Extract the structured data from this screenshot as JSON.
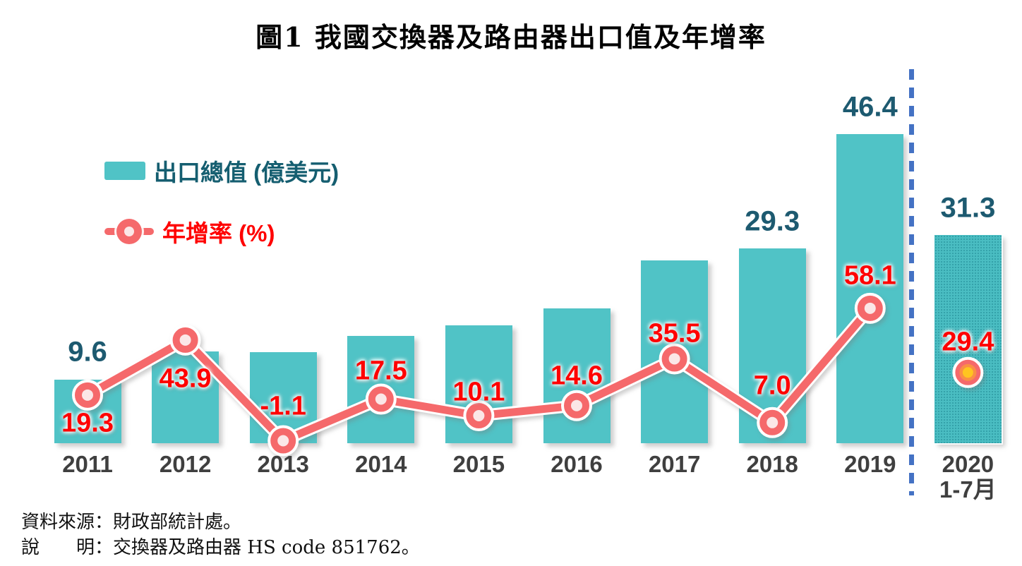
{
  "title": "圖1 我國交換器及路由器出口值及年增率",
  "legend": {
    "bars_label": "出口總值 (億美元)",
    "line_label": "年增率 (%)"
  },
  "source_note": "資料來源：財政部統計處。",
  "explain_note": "說　　明：交換器及路由器 HS code 851762。",
  "colors": {
    "bar": "#50C3C6",
    "bar_2020_base": "#4ABDC2",
    "bar_2020_dot": "#2D99A2",
    "bar_value_label": "#1D5A70",
    "legend_bar_text": "#155E70",
    "line": "#F5696B",
    "marker_inner": "#FBE7E7",
    "special_marker_mid": "#FA8F45",
    "special_marker_center": "#FFC520",
    "growth_label": "#FF0000",
    "x_label": "#3F3F3F",
    "divider": "#4472C4"
  },
  "chart_data": {
    "type": "bar+line",
    "categories": [
      "2011",
      "2012",
      "2013",
      "2014",
      "2015",
      "2016",
      "2017",
      "2018",
      "2019",
      "2020"
    ],
    "category_sublabels": [
      null,
      null,
      null,
      null,
      null,
      null,
      null,
      null,
      null,
      "1-7月"
    ],
    "series": [
      {
        "name": "出口總值 (億美元)",
        "type": "bar",
        "unit": "億美元",
        "values": [
          9.6,
          13.8,
          13.7,
          16.1,
          17.7,
          20.3,
          27.5,
          29.3,
          46.4,
          31.3
        ],
        "data_labels": [
          "9.6",
          null,
          null,
          null,
          null,
          null,
          null,
          "29.3",
          "46.4",
          "31.3"
        ],
        "note": "unlabeled bar values estimated from bar heights"
      },
      {
        "name": "年增率 (%)",
        "type": "line",
        "unit": "%",
        "values": [
          19.3,
          43.9,
          -1.1,
          17.5,
          10.1,
          14.6,
          35.5,
          7.0,
          58.1,
          29.4
        ],
        "data_labels": [
          "19.3",
          "43.9",
          "-1.1",
          "17.5",
          "10.1",
          "14.6",
          "35.5",
          "7.0",
          "58.1",
          "29.4"
        ],
        "last_point_isolated_marker": true
      }
    ],
    "divider": {
      "after_category": "2019",
      "style": "dashed",
      "color": "#4472C4"
    },
    "axes": {
      "y_axis_shown": false,
      "gridlines": false,
      "x_labels_shown": true
    },
    "legend_position": "upper-left"
  }
}
